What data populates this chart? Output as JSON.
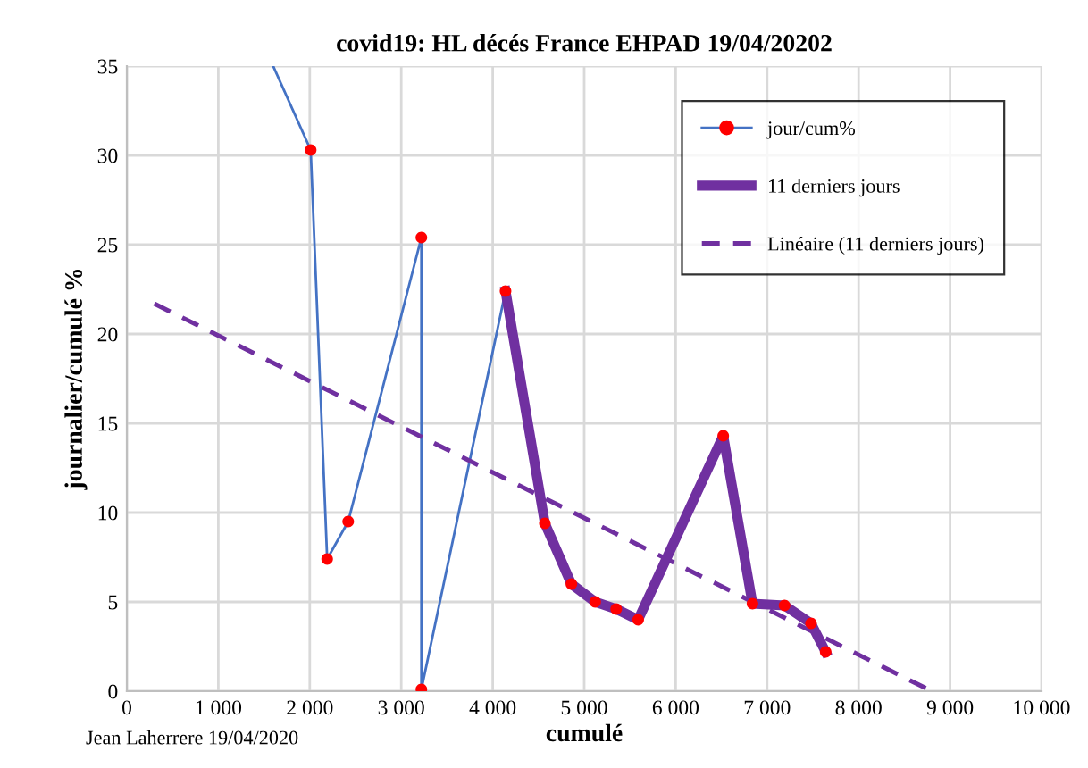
{
  "chart_data": {
    "type": "line",
    "title": "covid19: HL décés France EHPAD 19/04/20202",
    "xlabel": "cumulé",
    "ylabel": "journalier/cumulé %",
    "xlim": [
      0,
      10000
    ],
    "xticks": [
      0,
      {
        "value": 1000,
        "label": "1 000"
      },
      {
        "value": 2000,
        "label": "2 000"
      },
      {
        "value": 3000,
        "label": "3 000"
      },
      {
        "value": 4000,
        "label": "4 000"
      },
      {
        "value": 5000,
        "label": "5 000"
      },
      {
        "value": 6000,
        "label": "6 000"
      },
      {
        "value": 7000,
        "label": "7 000"
      },
      {
        "value": 8000,
        "label": "8 000"
      },
      {
        "value": 9000,
        "label": "9 000"
      },
      {
        "value": 10000,
        "label": "10 000"
      }
    ],
    "ylim": [
      0,
      35
    ],
    "yticks": [
      0,
      5,
      10,
      15,
      20,
      25,
      30,
      35
    ],
    "grid": true,
    "legend": "top right",
    "annotations": [
      "Jean Laherrere 19/04/2020"
    ],
    "series": [
      {
        "color": "#4472c4",
        "marker": "none",
        "line_style": "solid",
        "x": [
          1600,
          2010
        ],
        "values": [
          35,
          30.3
        ]
      },
      {
        "name": "jour/cum%",
        "color": "#4472c4",
        "marker": "circle",
        "line_style": "solid",
        "colors": [
          "#ff0000",
          "#ff0000",
          "#ff0000",
          "#ff0000",
          "#ff0000",
          "#ff0000",
          "#ff0000",
          "#ff0000",
          "#ff0000",
          "#ff0000",
          "#ff0000",
          "#ff0000",
          "#ff0000",
          "#ff0000",
          "#ff0000",
          "#ff0000"
        ],
        "x": [
          2010,
          2190,
          2420,
          3220,
          3220,
          4140,
          4570,
          4860,
          5120,
          5350,
          5590,
          6520,
          6840,
          7190,
          7480,
          7640
        ],
        "values": [
          30.3,
          7.4,
          9.5,
          25.4,
          0.1,
          22.4,
          9.4,
          6.0,
          5.0,
          4.6,
          4.0,
          14.3,
          4.9,
          4.8,
          3.8,
          2.2
        ]
      },
      {
        "name": "11 derniers jours",
        "color": "#7030a0",
        "marker": "none",
        "line_style": "solid",
        "x": [
          4140,
          4570,
          4860,
          5120,
          5350,
          5590,
          6520,
          6840,
          7190,
          7480,
          7640
        ],
        "values": [
          22.4,
          9.4,
          6.0,
          5.0,
          4.6,
          4.0,
          14.3,
          4.9,
          4.8,
          3.8,
          2.2
        ]
      },
      {
        "name": "Linéaire (11 derniers jours)",
        "color": "#7030a0",
        "marker": "none",
        "line_style": "dashed",
        "x": [
          300,
          8800
        ],
        "values": [
          21.7,
          0
        ]
      }
    ]
  }
}
